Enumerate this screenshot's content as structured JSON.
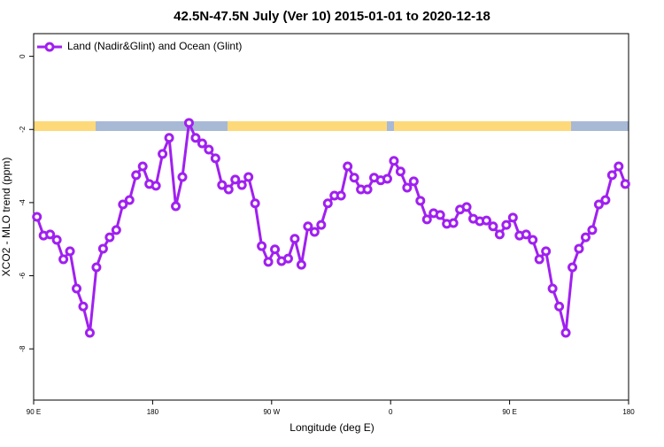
{
  "chart_data": {
    "type": "line",
    "title": "42.5N-47.5N July (Ver 10)   2015-01-01 to 2020-12-18",
    "x_label": "Longitude (deg E)",
    "y_label": "XCO2 - MLO trend (ppm)",
    "x": [
      92.5,
      97.5,
      102.5,
      107.5,
      112.5,
      117.5,
      122.5,
      127.5,
      132.5,
      137.5,
      142.5,
      147.5,
      152.5,
      157.5,
      162.5,
      167.5,
      172.5,
      177.5,
      182.5,
      187.5,
      192.5,
      197.5,
      202.5,
      207.5,
      212.5,
      217.5,
      222.5,
      227.5,
      232.5,
      237.5,
      242.5,
      247.5,
      252.5,
      257.5,
      262.5,
      267.5,
      272.5,
      277.5,
      282.5,
      287.5,
      292.5,
      297.5,
      302.5,
      307.5,
      312.5,
      317.5,
      322.5,
      327.5,
      332.5,
      337.5,
      342.5,
      347.5,
      352.5,
      357.5,
      362.5,
      367.5,
      372.5,
      377.5,
      382.5,
      387.5,
      392.5,
      397.5,
      402.5,
      407.5,
      412.5,
      417.5,
      422.5,
      427.5,
      432.5,
      437.5,
      442.5,
      447.5,
      452.5,
      457.5,
      462.5,
      467.5,
      472.5,
      477.5,
      482.5,
      487.5,
      492.5,
      497.5,
      502.5,
      507.5,
      512.5,
      517.5,
      522.5,
      527.5,
      532.5,
      537.5
    ],
    "series": [
      {
        "name": "Land (Nadir&Glint) and Ocean (Glint)",
        "color": "#a020f0",
        "values": [
          -4.39,
          -4.9,
          -4.87,
          -5.02,
          -5.55,
          -5.33,
          -6.35,
          -6.84,
          -7.56,
          -5.77,
          -5.26,
          -4.95,
          -4.75,
          -4.05,
          -3.93,
          -3.25,
          -3.01,
          -3.49,
          -3.54,
          -2.67,
          -2.23,
          -4.1,
          -3.3,
          -1.82,
          -2.23,
          -2.38,
          -2.55,
          -2.79,
          -3.52,
          -3.64,
          -3.37,
          -3.52,
          -3.3,
          -4.02,
          -5.19,
          -5.62,
          -5.28,
          -5.6,
          -5.53,
          -4.99,
          -5.7,
          -4.65,
          -4.8,
          -4.61,
          -4.02,
          -3.81,
          -3.81,
          -3.01,
          -3.32,
          -3.64,
          -3.64,
          -3.32,
          -3.39,
          -3.35,
          -2.86,
          -3.15,
          -3.59,
          -3.42,
          -3.95,
          -4.46,
          -4.29,
          -4.34,
          -4.58,
          -4.56,
          -4.19,
          -4.12,
          -4.44,
          -4.51,
          -4.49,
          -4.65,
          -4.87,
          -4.61,
          -4.41,
          -4.9,
          -4.87,
          -5.02,
          -5.55,
          -5.33,
          -6.35,
          -6.84,
          -7.56,
          -5.77,
          -5.26,
          -4.95,
          -4.75,
          -4.05,
          -3.93,
          -3.25,
          -3.01,
          -3.49
        ]
      }
    ],
    "xlim": [
      90,
      540
    ],
    "xticks": [
      {
        "value": 90,
        "label": "90 E"
      },
      {
        "value": 180,
        "label": "180"
      },
      {
        "value": 270,
        "label": "90 W"
      },
      {
        "value": 360,
        "label": "0"
      },
      {
        "value": 450,
        "label": "90 E"
      },
      {
        "value": 540,
        "label": "180"
      }
    ],
    "ylim": [
      -9.4,
      0.62
    ],
    "yticks": [
      0,
      -2,
      -4,
      -6,
      -8
    ],
    "legend": "top-left",
    "grid": false
  }
}
